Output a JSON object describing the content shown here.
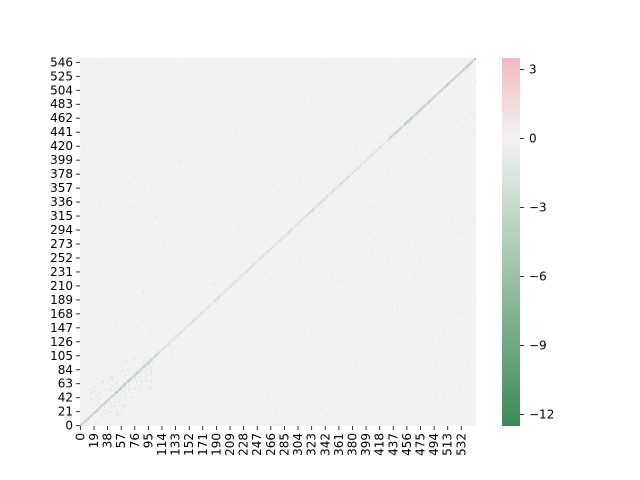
{
  "chart_data": {
    "type": "heatmap",
    "title": "",
    "xlabel": "",
    "ylabel": "",
    "matrix_size": 553,
    "x_ticks": [
      0,
      19,
      38,
      57,
      76,
      95,
      114,
      133,
      152,
      171,
      190,
      209,
      228,
      247,
      266,
      285,
      304,
      323,
      342,
      361,
      380,
      399,
      418,
      437,
      456,
      475,
      494,
      513,
      532
    ],
    "y_ticks": [
      0,
      21,
      42,
      63,
      84,
      105,
      126,
      147,
      168,
      189,
      210,
      231,
      252,
      273,
      294,
      315,
      336,
      357,
      378,
      399,
      420,
      441,
      462,
      483,
      504,
      525,
      546
    ],
    "y_axis_origin": "bottom",
    "background_value": 0,
    "diagonal": {
      "description": "strong negative values concentrated along the main diagonal, strongest near both ends",
      "value_range": [
        -12,
        -1
      ]
    },
    "colorbar": {
      "vmin": -12.5,
      "vmax": 3.5,
      "ticks": [
        -12,
        -9,
        -6,
        -3,
        0,
        3
      ],
      "tick_labels": [
        "−12",
        "−9",
        "−6",
        "−3",
        "0",
        "3"
      ],
      "colors": {
        "min": "#3d8a57",
        "zero": "#f2f2f2",
        "max": "#f4b8c0"
      }
    }
  }
}
